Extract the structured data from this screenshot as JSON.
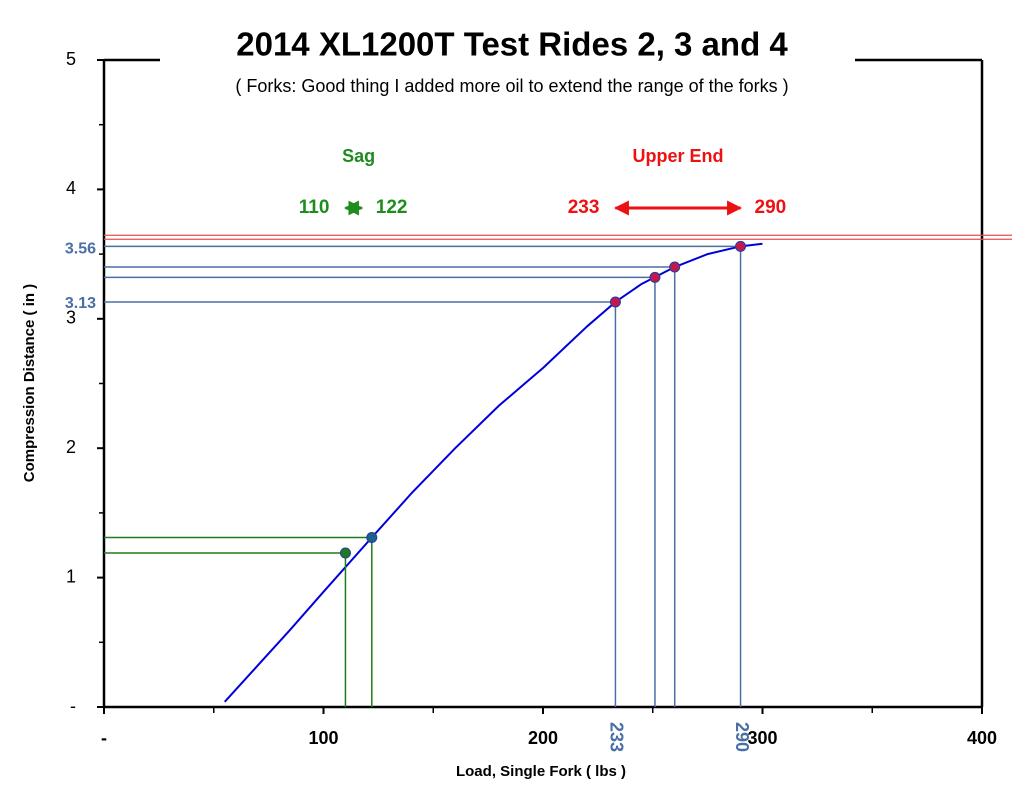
{
  "chart_data": {
    "type": "line",
    "title": "2014 XL1200T Test Rides 2, 3 and 4",
    "subtitle": "( Forks: Good thing I added more oil to extend the range of the forks )",
    "x_label": "Load, Single Fork ( lbs )",
    "y_label": "Compression Distance ( in )",
    "xlim": [
      0,
      400
    ],
    "ylim": [
      0,
      5
    ],
    "xticks": [
      {
        "value": 0,
        "label": "-"
      },
      100,
      200,
      300,
      400
    ],
    "yticks": [
      {
        "value": 0,
        "label": "-"
      },
      1,
      2,
      3,
      4,
      5
    ],
    "x_minor_ticks": [
      50,
      150,
      250,
      350
    ],
    "y_minor_ticks": [
      0.5,
      1.5,
      2.5,
      3.5,
      4.5
    ],
    "series": [
      {
        "style": "line",
        "color": "#0000dd",
        "x": [
          55,
          70,
          85,
          100,
          122,
          140,
          160,
          180,
          200,
          220,
          233,
          245,
          260,
          275,
          290,
          300
        ],
        "values": [
          0.04,
          0.32,
          0.6,
          0.89,
          1.31,
          1.65,
          2.0,
          2.33,
          2.62,
          2.94,
          3.13,
          3.27,
          3.4,
          3.5,
          3.56,
          3.58
        ]
      },
      {
        "style": "points",
        "color": "#1e7b1e",
        "point_colors": [
          "#1e7b1e",
          "#1f5f8b"
        ],
        "x": [
          110,
          122
        ],
        "values": [
          1.19,
          1.31
        ]
      },
      {
        "style": "points",
        "color": "#4a6fa5",
        "point_colors": [
          "#c0184f",
          "#c0184f",
          "#c0184f",
          "#c0184f"
        ],
        "x": [
          233,
          251,
          260,
          290
        ],
        "values": [
          3.13,
          3.32,
          3.4,
          3.56
        ]
      }
    ],
    "reference_line": {
      "value": 3.63,
      "color": "#e05050"
    },
    "annotations": [
      {
        "title": "Sag",
        "color": "#1e8c1e",
        "from": 110,
        "to": 122
      },
      {
        "title": "Upper End",
        "color": "#ee1111",
        "from": 233,
        "to": 290
      }
    ],
    "axis_value_labels": {
      "color": "#4a6fa5"
    }
  }
}
